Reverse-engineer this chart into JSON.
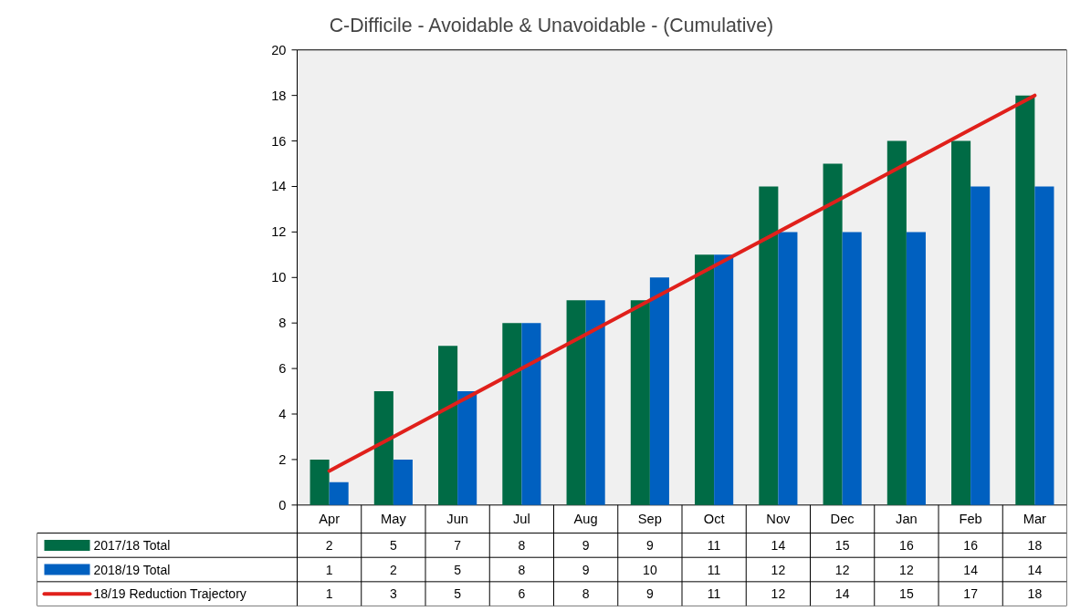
{
  "chart_data": {
    "type": "bar",
    "title": "C-Difficile - Avoidable & Unavoidable - (Cumulative)",
    "categories": [
      "Apr",
      "May",
      "Jun",
      "Jul",
      "Aug",
      "Sep",
      "Oct",
      "Nov",
      "Dec",
      "Jan",
      "Feb",
      "Mar"
    ],
    "series": [
      {
        "name": "2017/18 Total",
        "color": "#006b45",
        "values": [
          2,
          5,
          7,
          8,
          9,
          9,
          11,
          14,
          15,
          16,
          16,
          18
        ],
        "value_labels": [
          "2",
          "5",
          "7",
          "8",
          "9",
          "9",
          "11",
          "14",
          "15",
          "16",
          "16",
          "18"
        ]
      },
      {
        "name": "2018/19 Total",
        "color": "#0060c0",
        "values": [
          1,
          2,
          5,
          8,
          9,
          10,
          11,
          12,
          12,
          12,
          14,
          14
        ],
        "value_labels": [
          "1",
          "2",
          "5",
          "8",
          "9",
          "10",
          "11",
          "12",
          "12",
          "12",
          "14",
          "14"
        ]
      },
      {
        "name": "18/19 Reduction Trajectory",
        "type": "line",
        "color": "#e0201b",
        "values": [
          1.5,
          3,
          4.5,
          6,
          7.5,
          9,
          10.5,
          12,
          13.5,
          15,
          16.5,
          18
        ],
        "value_labels": [
          "1",
          "3",
          "5",
          "6",
          "8",
          "9",
          "11",
          "12",
          "14",
          "15",
          "17",
          "18"
        ]
      }
    ],
    "ylim": [
      0,
      20
    ],
    "yticks": [
      0,
      2,
      4,
      6,
      8,
      10,
      12,
      14,
      16,
      18,
      20
    ],
    "grid": false,
    "legend": "bottom"
  }
}
